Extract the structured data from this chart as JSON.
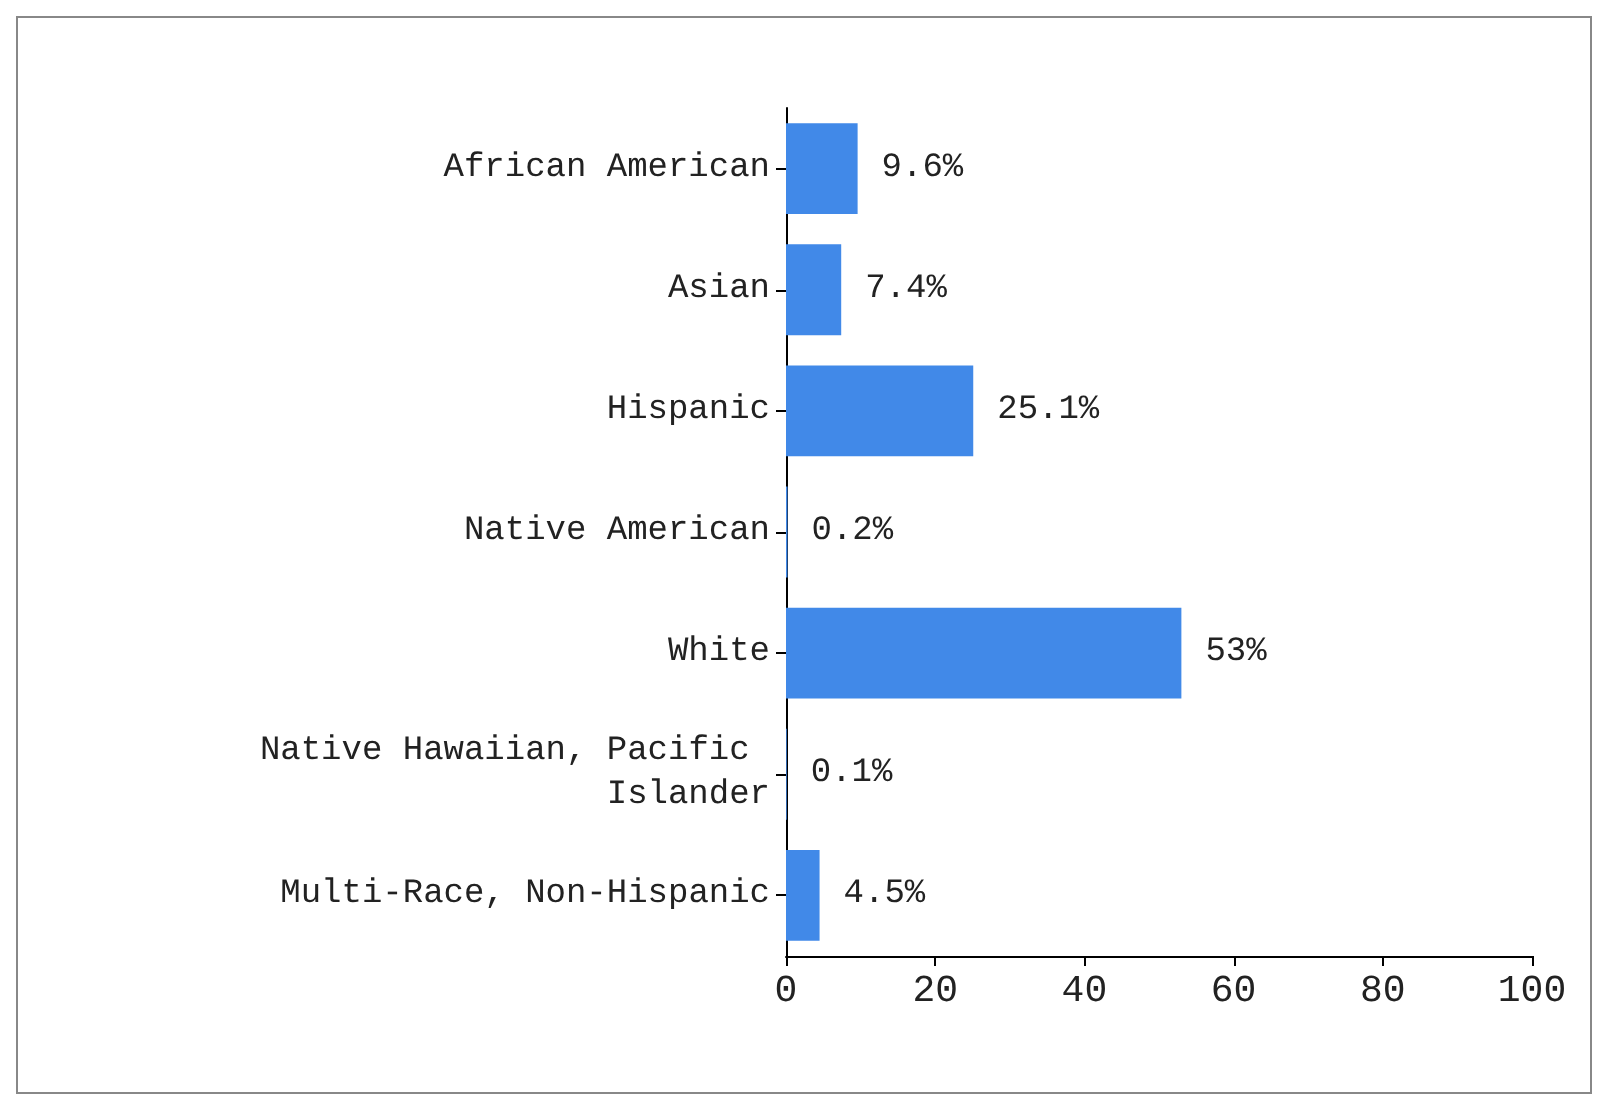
{
  "chart_data": {
    "type": "bar",
    "orientation": "horizontal",
    "categories": [
      "African American",
      "Asian",
      "Hispanic",
      "Native American",
      "White",
      "Native Hawaiian, Pacific Islander",
      "Multi-Race, Non-Hispanic"
    ],
    "values": [
      9.6,
      7.4,
      25.1,
      0.2,
      53,
      0.1,
      4.5
    ],
    "value_labels": [
      "9.6%",
      "7.4%",
      "25.1%",
      "0.2%",
      "53%",
      "0.1%",
      "4.5%"
    ],
    "color": "#4189e8",
    "xlim": [
      0,
      100
    ],
    "xticks": [
      0,
      20,
      40,
      60,
      80,
      100
    ],
    "grid": false
  }
}
